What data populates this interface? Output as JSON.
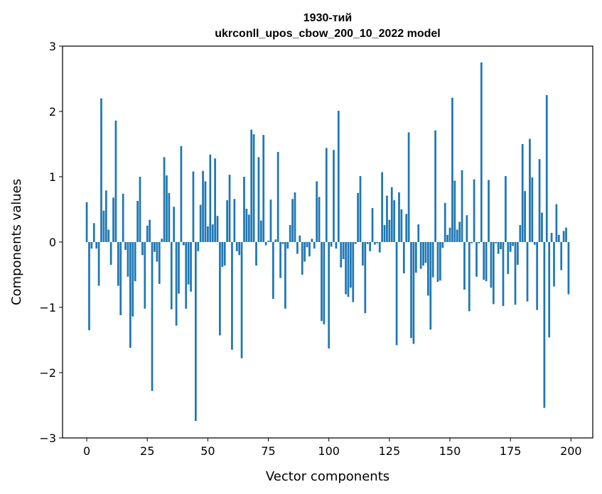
{
  "chart_data": {
    "type": "bar",
    "title_line1": "1930-тий",
    "title_line2": "ukrconll_upos_cbow_200_10_2022 model",
    "xlabel": "Vector components",
    "ylabel": "Components values",
    "xlim": [
      -10,
      209
    ],
    "ylim": [
      -3,
      3
    ],
    "x_ticks": [
      0,
      25,
      50,
      75,
      100,
      125,
      150,
      175,
      200
    ],
    "x_tick_labels": [
      "0",
      "25",
      "50",
      "75",
      "100",
      "125",
      "150",
      "175",
      "200"
    ],
    "y_ticks": [
      -3,
      -2,
      -1,
      0,
      1,
      2,
      3
    ],
    "y_tick_labels": [
      "−3",
      "−2",
      "−1",
      "0",
      "1",
      "2",
      "3"
    ],
    "bar_color": "#1f77b4",
    "grid": false,
    "values": [
      0.61,
      -1.35,
      -0.1,
      0.29,
      -0.1,
      -0.67,
      2.2,
      0.48,
      0.79,
      0.19,
      -0.35,
      0.68,
      1.86,
      -0.67,
      -1.12,
      0.74,
      -0.12,
      -0.53,
      -1.62,
      -1.14,
      -0.6,
      0.63,
      1.0,
      -0.2,
      -1.02,
      0.25,
      0.34,
      -2.28,
      -0.15,
      -0.3,
      -0.64,
      0.05,
      1.3,
      1.02,
      0.75,
      -1.03,
      0.54,
      -1.28,
      -0.79,
      1.47,
      -0.05,
      -1.02,
      -0.65,
      -0.76,
      1.08,
      -2.74,
      -0.14,
      0.57,
      1.09,
      0.93,
      0.24,
      1.34,
      0.27,
      1.28,
      0.4,
      -1.43,
      -0.38,
      -0.36,
      0.64,
      1.03,
      -1.65,
      0.66,
      -0.14,
      -0.2,
      -1.78,
      1.0,
      0.51,
      0.42,
      1.72,
      1.65,
      -0.36,
      1.3,
      0.33,
      1.64,
      -0.05,
      0.02,
      0.65,
      -0.87,
      0.04,
      1.38,
      -0.55,
      -0.03,
      -1.02,
      -0.1,
      0.26,
      0.66,
      0.76,
      -0.18,
      0.1,
      -0.5,
      -0.3,
      -0.08,
      -0.22,
      0.05,
      -0.1,
      0.93,
      0.69,
      -1.21,
      -1.26,
      1.44,
      -1.63,
      -0.07,
      1.41,
      -0.1,
      2.01,
      -0.39,
      -0.26,
      -0.8,
      -0.84,
      -0.7,
      -0.92,
      -0.03,
      0.75,
      1.01,
      -0.36,
      -1.09,
      -0.03,
      -0.14,
      0.52,
      -0.04,
      -0.02,
      -0.16,
      1.07,
      0.26,
      0.71,
      0.34,
      0.84,
      0.64,
      -1.58,
      0.76,
      0.5,
      -0.48,
      0.43,
      1.68,
      -1.47,
      -1.56,
      -0.47,
      0.27,
      -0.41,
      -0.36,
      -0.32,
      -0.82,
      -1.34,
      -0.54,
      1.71,
      -0.61,
      -0.59,
      -0.09,
      0.6,
      0.11,
      0.22,
      2.21,
      0.94,
      0.19,
      0.31,
      1.1,
      -0.73,
      0.41,
      -1.06,
      -0.02,
      0.96,
      -0.53,
      -0.02,
      2.75,
      -0.58,
      -0.6,
      0.95,
      -0.7,
      -0.95,
      -0.02,
      -0.18,
      -0.11,
      -0.98,
      1.01,
      -0.49,
      -0.15,
      -0.06,
      -0.96,
      -0.35,
      0.26,
      1.5,
      0.78,
      -0.91,
      1.58,
      0.99,
      -0.04,
      -1.04,
      1.27,
      0.45,
      -2.54,
      2.25,
      -1.46,
      0.14,
      -0.68,
      0.58,
      0.11,
      -0.43,
      0.17,
      0.22,
      -0.8
    ]
  }
}
